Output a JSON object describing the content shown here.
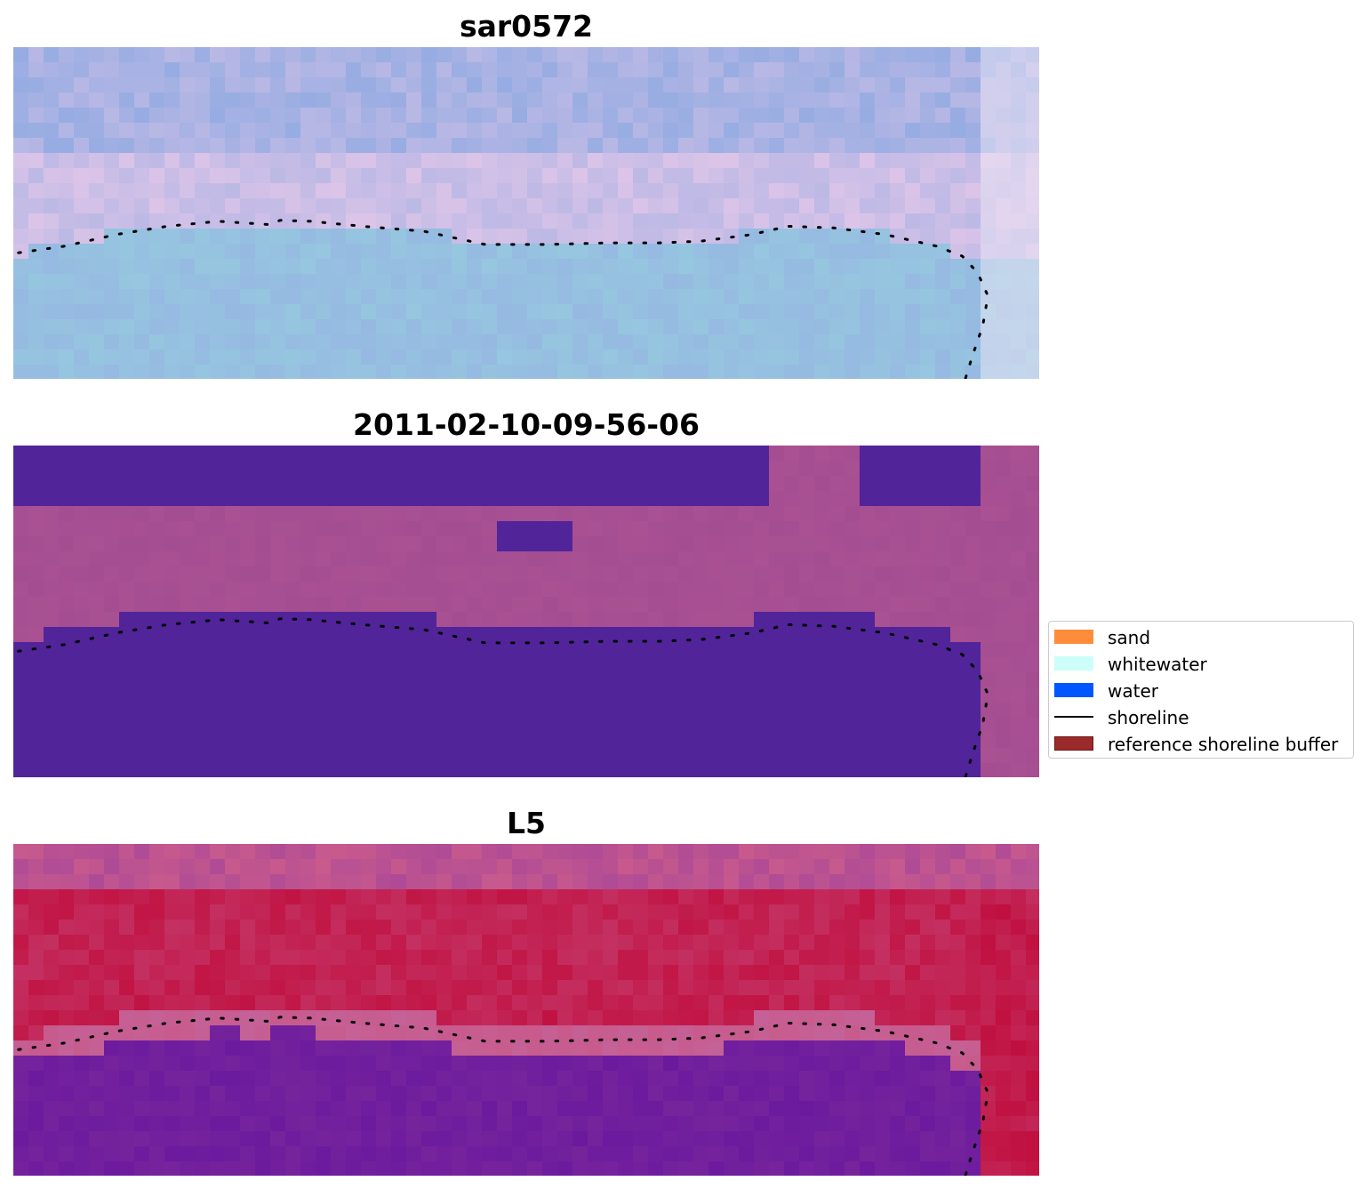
{
  "panels": [
    {
      "title": "sar0572",
      "style": "rgb-composite"
    },
    {
      "title": "2011-02-10-09-56-06",
      "style": "classified"
    },
    {
      "title": "L5",
      "style": "index-map"
    }
  ],
  "legend": {
    "items": [
      {
        "label": "sand",
        "color": "#ff8c3a",
        "kind": "patch"
      },
      {
        "label": "whitewater",
        "color": "#ccfff9",
        "kind": "patch"
      },
      {
        "label": "water",
        "color": "#0057ff",
        "kind": "patch"
      },
      {
        "label": "shoreline",
        "color": "#000000",
        "kind": "line"
      },
      {
        "label": "reference shoreline buffer",
        "color": "#9b2a2a",
        "kind": "patch"
      }
    ]
  },
  "colors": {
    "deep_water_purple": "#51249a",
    "magenta_land": "#a24d93",
    "crimson": "#c01040",
    "index_purple": "#7a2a9e",
    "composite_blue": "#9fb1de",
    "composite_pink": "#d7c3e6"
  },
  "shoreline": {
    "points": [
      [
        0.005,
        0.62
      ],
      [
        0.05,
        0.6
      ],
      [
        0.1,
        0.565
      ],
      [
        0.15,
        0.54
      ],
      [
        0.2,
        0.525
      ],
      [
        0.25,
        0.535
      ],
      [
        0.26,
        0.522
      ],
      [
        0.29,
        0.525
      ],
      [
        0.34,
        0.54
      ],
      [
        0.4,
        0.555
      ],
      [
        0.46,
        0.595
      ],
      [
        0.52,
        0.595
      ],
      [
        0.58,
        0.59
      ],
      [
        0.63,
        0.59
      ],
      [
        0.67,
        0.585
      ],
      [
        0.72,
        0.565
      ],
      [
        0.755,
        0.54
      ],
      [
        0.8,
        0.545
      ],
      [
        0.85,
        0.565
      ],
      [
        0.9,
        0.6
      ],
      [
        0.925,
        0.63
      ],
      [
        0.94,
        0.68
      ],
      [
        0.95,
        0.75
      ],
      [
        0.945,
        0.84
      ],
      [
        0.935,
        0.93
      ],
      [
        0.928,
        1.0
      ]
    ]
  }
}
